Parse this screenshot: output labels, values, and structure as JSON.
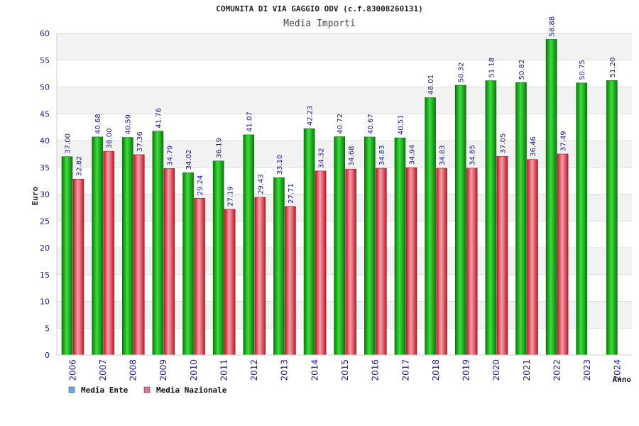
{
  "chart_data": {
    "type": "bar",
    "title": "COMUNITA DI VIA GAGGIO ODV (c.f.83008260131)",
    "subtitle": "Media Importi",
    "xlabel": "Anno",
    "ylabel": "Euro",
    "ylim": [
      0,
      60
    ],
    "yticks": [
      0,
      5,
      10,
      15,
      20,
      25,
      30,
      35,
      40,
      45,
      50,
      55,
      60
    ],
    "grid": true,
    "legend_position": "bottom-left",
    "categories": [
      "2006",
      "2007",
      "2008",
      "2009",
      "2010",
      "2011",
      "2012",
      "2013",
      "2014",
      "2015",
      "2016",
      "2017",
      "2018",
      "2019",
      "2020",
      "2021",
      "2022",
      "2023",
      "2024"
    ],
    "series": [
      {
        "name": "Media Ente",
        "color": "#22aa22",
        "legend_color": "#66aaee",
        "values": [
          37.0,
          40.68,
          40.59,
          41.76,
          34.02,
          36.19,
          41.07,
          33.1,
          42.23,
          40.72,
          40.67,
          40.51,
          48.01,
          50.32,
          51.18,
          50.82,
          58.88,
          50.75,
          51.2
        ],
        "labels": [
          "37.00",
          "40.68",
          "40.59",
          "41.76",
          "34.02",
          "36.19",
          "41.07",
          "33.10",
          "42.23",
          "40.72",
          "40.67",
          "40.51",
          "48.01",
          "50.32",
          "51.18",
          "50.82",
          "58.88",
          "50.75",
          "51.20"
        ]
      },
      {
        "name": "Media Nazionale",
        "color": "#e03040",
        "legend_color": "#e070a0",
        "values": [
          32.82,
          38.0,
          37.36,
          34.79,
          29.24,
          27.19,
          29.43,
          27.71,
          34.32,
          34.68,
          34.83,
          34.94,
          34.83,
          34.85,
          37.05,
          36.46,
          37.49,
          null,
          null
        ],
        "labels": [
          "32.82",
          "38.00",
          "37.36",
          "34.79",
          "29.24",
          "27.19",
          "29.43",
          "27.71",
          "34.32",
          "34.68",
          "34.83",
          "34.94",
          "34.83",
          "34.85",
          "37.05",
          "36.46",
          "37.49",
          null,
          null
        ]
      }
    ]
  }
}
